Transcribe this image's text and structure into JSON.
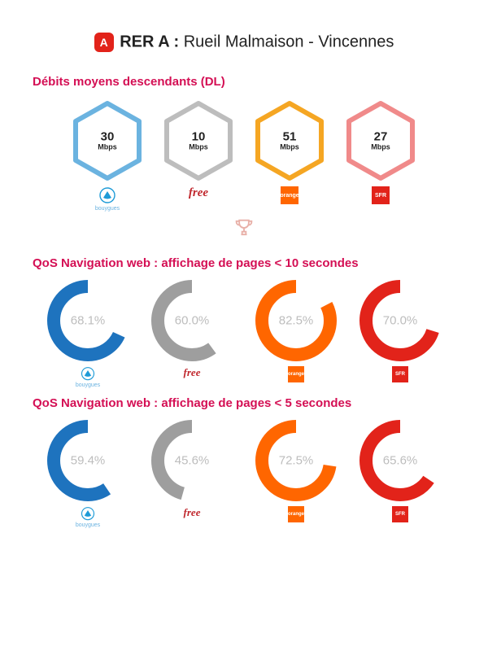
{
  "header": {
    "badge_letter": "A",
    "badge_bg": "#e2231a",
    "line_prefix": "RER A :",
    "line_name": " Rueil Malmaison - Vincennes",
    "title_color": "#000000"
  },
  "section_dl": {
    "title": "Débits moyens descendants (DL)",
    "title_color": "#d40f54",
    "unit": "Mbps",
    "hex_stroke_width": 6,
    "items": [
      {
        "value": "30",
        "stroke": "#6bb3e0",
        "operator": "bouygues"
      },
      {
        "value": "10",
        "stroke": "#bdbdbd",
        "operator": "free"
      },
      {
        "value": "51",
        "stroke": "#f5a623",
        "operator": "orange"
      },
      {
        "value": "27",
        "stroke": "#f08a8a",
        "operator": "sfr"
      }
    ]
  },
  "operators": {
    "bouygues": {
      "name": "bouygues",
      "name_color": "#6bb3e0",
      "shape": "tri",
      "shape_color": "#1e9bd7"
    },
    "free": {
      "name": "free",
      "name_color": "#c0272d",
      "shape": "script",
      "shape_color": "#c0272d"
    },
    "orange": {
      "name": "orange",
      "name_color": "#ffffff",
      "shape": "square",
      "shape_color": "#ff6600"
    },
    "sfr": {
      "name": "SFR",
      "name_color": "#ffffff",
      "shape": "square",
      "shape_color": "#e2231a"
    }
  },
  "trophy_color": "#e8b0a8",
  "section_qos10": {
    "title": "QoS Navigation web : affichage de pages < 10 secondes",
    "title_color": "#d40f54",
    "ring_thickness": 16,
    "items": [
      {
        "pct": 68.1,
        "label": "68.1%",
        "color": "#1e73be",
        "operator": "bouygues"
      },
      {
        "pct": 60.0,
        "label": "60.0%",
        "color": "#9e9e9e",
        "operator": "free"
      },
      {
        "pct": 82.5,
        "label": "82.5%",
        "color": "#ff6600",
        "operator": "orange"
      },
      {
        "pct": 70.0,
        "label": "70.0%",
        "color": "#e2231a",
        "operator": "sfr"
      }
    ]
  },
  "section_qos5": {
    "title": "QoS Navigation web : affichage de pages < 5 secondes",
    "title_color": "#d40f54",
    "ring_thickness": 16,
    "items": [
      {
        "pct": 59.4,
        "label": "59.4%",
        "color": "#1e73be",
        "operator": "bouygues"
      },
      {
        "pct": 45.6,
        "label": "45.6%",
        "color": "#9e9e9e",
        "operator": "free"
      },
      {
        "pct": 72.5,
        "label": "72.5%",
        "color": "#ff6600",
        "operator": "orange"
      },
      {
        "pct": 65.6,
        "label": "65.6%",
        "color": "#e2231a",
        "operator": "sfr"
      }
    ]
  }
}
